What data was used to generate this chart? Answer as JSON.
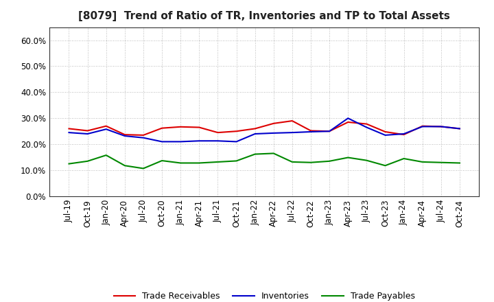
{
  "title": "[8079]  Trend of Ratio of TR, Inventories and TP to Total Assets",
  "x_labels": [
    "Jul-19",
    "Oct-19",
    "Jan-20",
    "Apr-20",
    "Jul-20",
    "Oct-20",
    "Jan-21",
    "Apr-21",
    "Jul-21",
    "Oct-21",
    "Jan-22",
    "Apr-22",
    "Jul-22",
    "Oct-22",
    "Jan-23",
    "Apr-23",
    "Jul-23",
    "Oct-23",
    "Jan-24",
    "Apr-24",
    "Jul-24",
    "Oct-24"
  ],
  "trade_receivables": [
    0.26,
    0.252,
    0.27,
    0.237,
    0.235,
    0.262,
    0.267,
    0.265,
    0.245,
    0.25,
    0.26,
    0.28,
    0.29,
    0.252,
    0.25,
    0.285,
    0.278,
    0.248,
    0.237,
    0.27,
    0.268,
    0.26
  ],
  "inventories": [
    0.245,
    0.24,
    0.258,
    0.232,
    0.225,
    0.21,
    0.21,
    0.213,
    0.213,
    0.21,
    0.24,
    0.243,
    0.245,
    0.248,
    0.25,
    0.3,
    0.265,
    0.235,
    0.24,
    0.268,
    0.268,
    0.26
  ],
  "trade_payables": [
    0.125,
    0.135,
    0.158,
    0.118,
    0.107,
    0.137,
    0.128,
    0.128,
    0.132,
    0.136,
    0.162,
    0.165,
    0.132,
    0.13,
    0.135,
    0.149,
    0.138,
    0.118,
    0.145,
    0.132,
    0.13,
    0.128
  ],
  "tr_color": "#dd0000",
  "inv_color": "#0000cc",
  "tp_color": "#008800",
  "ylim": [
    0.0,
    0.65
  ],
  "yticks": [
    0.0,
    0.1,
    0.2,
    0.3,
    0.4,
    0.5,
    0.6
  ],
  "legend_tr": "Trade Receivables",
  "legend_inv": "Inventories",
  "legend_tp": "Trade Payables",
  "bg_color": "#ffffff",
  "plot_bg_color": "#ffffff",
  "grid_color": "#999999",
  "line_width": 1.5,
  "title_fontsize": 11,
  "tick_fontsize": 8.5,
  "legend_fontsize": 9
}
